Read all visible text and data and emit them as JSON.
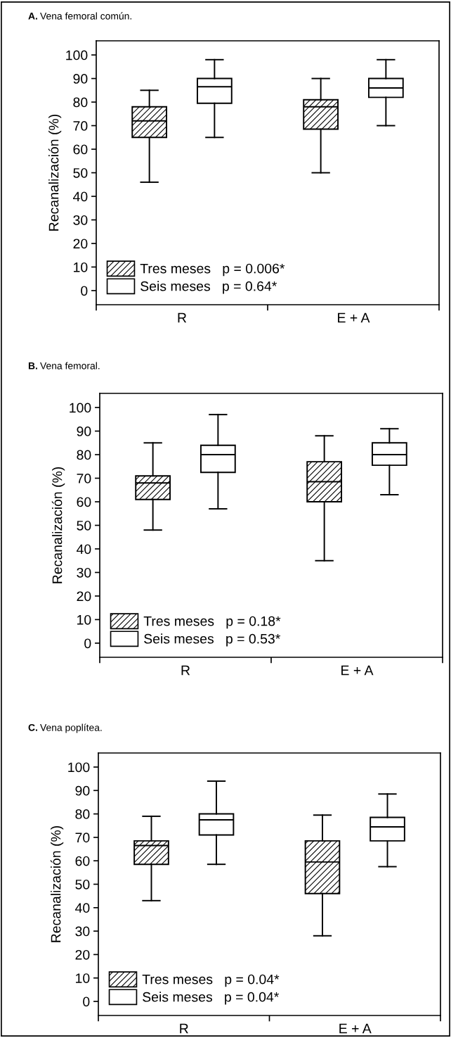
{
  "chart_data": [
    {
      "type": "box",
      "title": "A. Vena femoral común.",
      "ylabel": "Recanalización (%)",
      "categories": [
        "R",
        "E + A"
      ],
      "ylim": [
        -6,
        106
      ],
      "yticks": [
        0,
        10,
        20,
        30,
        40,
        50,
        60,
        70,
        80,
        90,
        100
      ],
      "grid": false,
      "legend": "bottom left",
      "series": [
        {
          "name": "Tres meses   p = 0.006*",
          "color": "#000000",
          "boxes": [
            {
              "low": 46,
              "q1": 65,
              "median": 72,
              "q3": 78,
              "high": 85
            },
            {
              "low": 50,
              "q1": 68.5,
              "median": 78,
              "q3": 81,
              "high": 90
            }
          ]
        },
        {
          "name": "Seis meses   p = 0.64*",
          "color": "#ffffff",
          "boxes": [
            {
              "low": 65,
              "q1": 79.5,
              "median": 86.5,
              "q3": 90,
              "high": 98
            },
            {
              "low": 70,
              "q1": 82,
              "median": 86,
              "q3": 90,
              "high": 98
            }
          ]
        }
      ]
    },
    {
      "type": "box",
      "title": "B. Vena femoral.",
      "ylabel": "Recanalización (%)",
      "categories": [
        "R",
        "E + A"
      ],
      "ylim": [
        -6,
        106
      ],
      "yticks": [
        0,
        10,
        20,
        30,
        40,
        50,
        60,
        70,
        80,
        90,
        100
      ],
      "grid": false,
      "legend": "bottom left",
      "series": [
        {
          "name": "Tres meses   p = 0.18*",
          "color": "#000000",
          "boxes": [
            {
              "low": 48,
              "q1": 61,
              "median": 68,
              "q3": 71,
              "high": 85
            },
            {
              "low": 35,
              "q1": 60,
              "median": 68.5,
              "q3": 77,
              "high": 88
            }
          ]
        },
        {
          "name": "Seis meses   p = 0.53*",
          "color": "#ffffff",
          "boxes": [
            {
              "low": 57,
              "q1": 72.5,
              "median": 80,
              "q3": 84,
              "high": 97
            },
            {
              "low": 63,
              "q1": 75.5,
              "median": 80,
              "q3": 85,
              "high": 91
            }
          ]
        }
      ]
    },
    {
      "type": "box",
      "title": "C. Vena poplítea.",
      "ylabel": "Recanalización (%)",
      "categories": [
        "R",
        "E + A"
      ],
      "ylim": [
        -6,
        106
      ],
      "yticks": [
        0,
        10,
        20,
        30,
        40,
        50,
        60,
        70,
        80,
        90,
        100
      ],
      "grid": false,
      "legend": "bottom left",
      "series": [
        {
          "name": "Tres meses   p = 0.04*",
          "color": "#000000",
          "boxes": [
            {
              "low": 43,
              "q1": 58.5,
              "median": 66.5,
              "q3": 68.5,
              "high": 79
            },
            {
              "low": 28,
              "q1": 46,
              "median": 59.5,
              "q3": 68.5,
              "high": 79.5
            }
          ]
        },
        {
          "name": "Seis meses   p = 0.04*",
          "color": "#ffffff",
          "boxes": [
            {
              "low": 58.5,
              "q1": 71,
              "median": 77.5,
              "q3": 80,
              "high": 94
            },
            {
              "low": 57.5,
              "q1": 68.5,
              "median": 74.5,
              "q3": 78.5,
              "high": 88.5
            }
          ]
        }
      ]
    }
  ]
}
